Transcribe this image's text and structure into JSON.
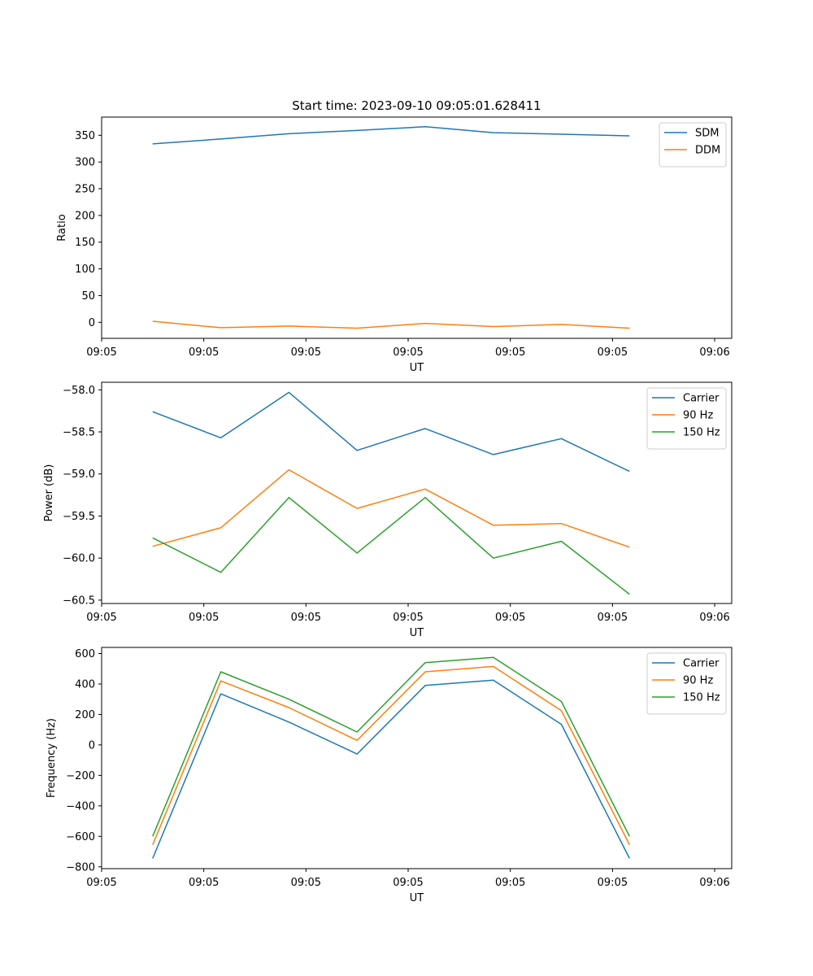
{
  "figure_title": "Start time: 2023-09-10 09:05:01.628411",
  "colors": {
    "blue": "#1f77b4",
    "orange": "#ff7f0e",
    "green": "#2ca02c"
  },
  "chart_data": [
    {
      "type": "line",
      "title": "Start time: 2023-09-10 09:05:01.628411",
      "xlabel": "UT",
      "ylabel": "Ratio",
      "xlim": [
        -0.15,
        1.7
      ],
      "x": [
        0.0,
        0.2,
        0.4,
        0.6,
        0.8,
        1.0,
        1.2,
        1.4
      ],
      "xticks": [
        -0.15,
        0.15,
        0.45,
        0.75,
        1.05,
        1.35,
        1.65
      ],
      "xtick_labels": [
        "09:05",
        "09:05",
        "09:05",
        "09:05",
        "09:05",
        "09:05",
        "09:06"
      ],
      "ylim": [
        -30,
        384
      ],
      "yticks": [
        0,
        50,
        100,
        150,
        200,
        250,
        300,
        350
      ],
      "ytick_labels": [
        "0",
        "50",
        "100",
        "150",
        "200",
        "250",
        "300",
        "350"
      ],
      "legend_position": "top-right",
      "series": [
        {
          "name": "SDM",
          "color": "#1f77b4",
          "values": [
            334,
            343,
            353,
            359,
            366,
            355,
            352,
            349
          ]
        },
        {
          "name": "DDM",
          "color": "#ff7f0e",
          "values": [
            2,
            -10,
            -7,
            -11,
            -2,
            -8,
            -4,
            -11
          ]
        }
      ]
    },
    {
      "type": "line",
      "title": "",
      "xlabel": "UT",
      "ylabel": "Power (dB)",
      "xlim": [
        -0.15,
        1.7
      ],
      "x": [
        0.0,
        0.2,
        0.4,
        0.6,
        0.8,
        1.0,
        1.2,
        1.4
      ],
      "xticks": [
        -0.15,
        0.15,
        0.45,
        0.75,
        1.05,
        1.35,
        1.65
      ],
      "xtick_labels": [
        "09:05",
        "09:05",
        "09:05",
        "09:05",
        "09:05",
        "09:05",
        "09:06"
      ],
      "ylim": [
        -60.54,
        -57.91
      ],
      "yticks": [
        -58.0,
        -58.5,
        -59.0,
        -59.5,
        -60.0,
        -60.5
      ],
      "ytick_labels": [
        "−58.0",
        "−58.5",
        "−59.0",
        "−59.5",
        "−60.0",
        "−60.5"
      ],
      "legend_position": "top-right",
      "series": [
        {
          "name": "Carrier",
          "color": "#1f77b4",
          "values": [
            -58.26,
            -58.57,
            -58.03,
            -58.72,
            -58.46,
            -58.77,
            -58.58,
            -58.97
          ]
        },
        {
          "name": "90 Hz",
          "color": "#ff7f0e",
          "values": [
            -59.86,
            -59.64,
            -58.95,
            -59.41,
            -59.18,
            -59.61,
            -59.59,
            -59.87
          ]
        },
        {
          "name": "150 Hz",
          "color": "#2ca02c",
          "values": [
            -59.76,
            -60.17,
            -59.28,
            -59.94,
            -59.28,
            -60.0,
            -59.8,
            -60.43
          ]
        }
      ]
    },
    {
      "type": "line",
      "title": "",
      "xlabel": "UT",
      "ylabel": "Frequency (Hz)",
      "xlim": [
        -0.15,
        1.7
      ],
      "x": [
        0.0,
        0.2,
        0.4,
        0.6,
        0.8,
        1.0,
        1.2,
        1.4
      ],
      "xticks": [
        -0.15,
        0.15,
        0.45,
        0.75,
        1.05,
        1.35,
        1.65
      ],
      "xtick_labels": [
        "09:05",
        "09:05",
        "09:05",
        "09:05",
        "09:05",
        "09:05",
        "09:06"
      ],
      "ylim": [
        -812,
        640
      ],
      "yticks": [
        -800,
        -600,
        -400,
        -200,
        0,
        200,
        400,
        600
      ],
      "ytick_labels": [
        "−800",
        "−600",
        "−400",
        "−200",
        "0",
        "200",
        "400",
        "600"
      ],
      "legend_position": "top-right",
      "series": [
        {
          "name": "Carrier",
          "color": "#1f77b4",
          "values": [
            -745,
            335,
            150,
            -60,
            390,
            425,
            135,
            -745
          ]
        },
        {
          "name": "90 Hz",
          "color": "#ff7f0e",
          "values": [
            -655,
            420,
            245,
            30,
            480,
            515,
            225,
            -655
          ]
        },
        {
          "name": "150 Hz",
          "color": "#2ca02c",
          "values": [
            -600,
            480,
            300,
            85,
            540,
            575,
            285,
            -600
          ]
        }
      ]
    }
  ]
}
